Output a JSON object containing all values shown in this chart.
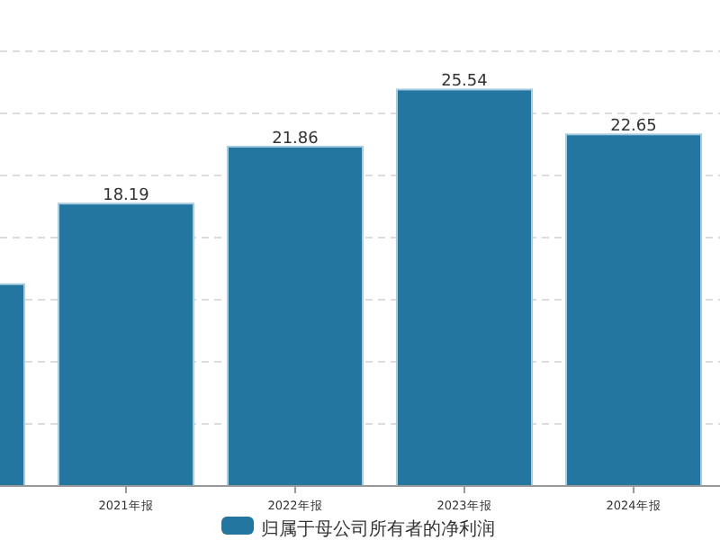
{
  "chart_data": {
    "type": "bar",
    "categories": [
      null,
      "2021年报",
      "2022年报",
      "2023年报",
      "2024年报"
    ],
    "series": [
      {
        "name": "归属于母公司所有者的净利润",
        "color": "#22769f",
        "values": [
          13.0,
          18.19,
          21.86,
          25.54,
          22.65
        ],
        "value_labels": [
          null,
          "18.19",
          "21.86",
          "25.54",
          "22.65"
        ]
      }
    ],
    "yticks": [
      {
        "value": 0,
        "label": null
      },
      {
        "value": 4,
        "label": null
      },
      {
        "value": 8,
        "label": null
      },
      {
        "value": 12,
        "label": null
      },
      {
        "value": 16,
        "label": null
      },
      {
        "value": 20,
        "label": null
      },
      {
        "value": 24,
        "label": null
      },
      {
        "value": 28,
        "label": null
      }
    ],
    "grid": "y",
    "legend": "bottom",
    "tick_labels": "x"
  }
}
